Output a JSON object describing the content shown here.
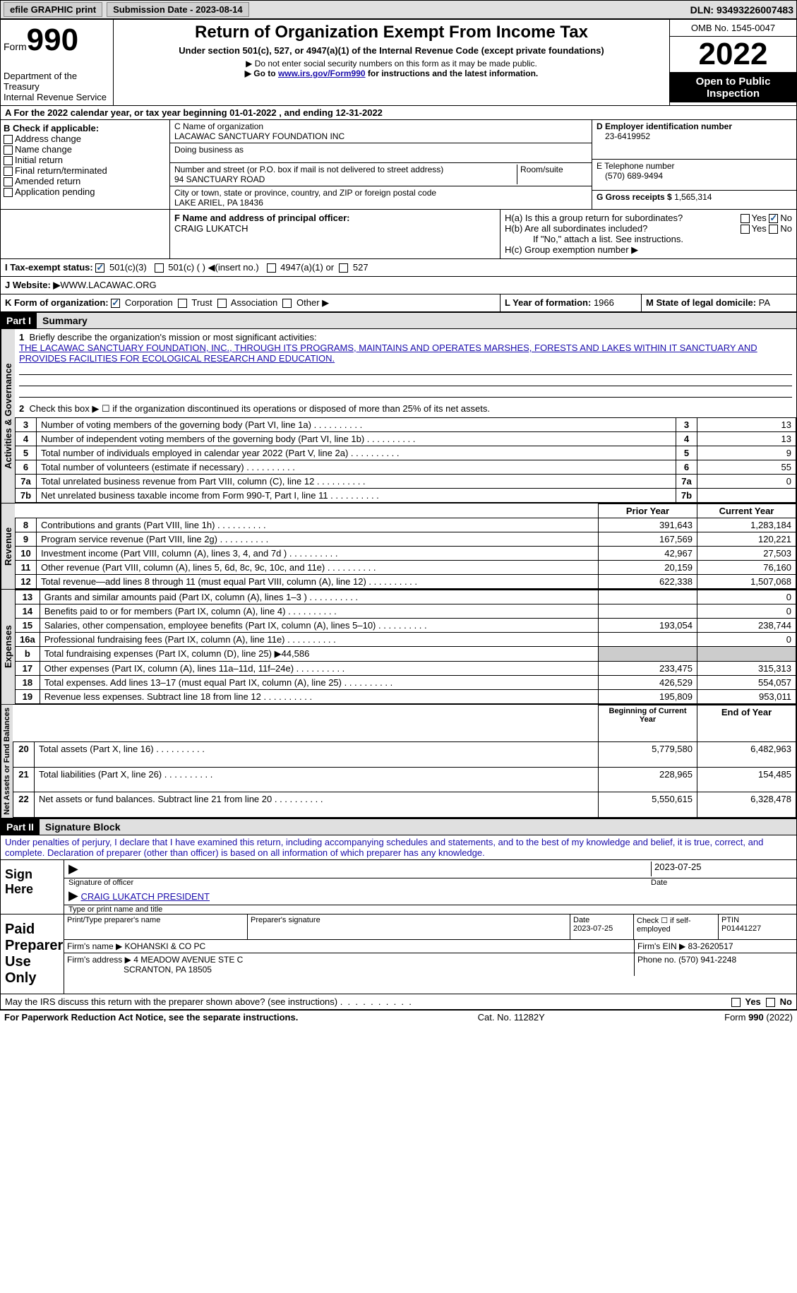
{
  "topbar": {
    "efile": "efile GRAPHIC print",
    "subdate_label": "Submission Date - ",
    "subdate": "2023-08-14",
    "dln_label": "DLN: ",
    "dln": "93493226007483"
  },
  "header": {
    "form_word": "Form",
    "form_num": "990",
    "dept": "Department of the Treasury",
    "irs": "Internal Revenue Service",
    "title": "Return of Organization Exempt From Income Tax",
    "subtitle": "Under section 501(c), 527, or 4947(a)(1) of the Internal Revenue Code (except private foundations)",
    "note1": "▶ Do not enter social security numbers on this form as it may be made public.",
    "note2_pre": "▶ Go to ",
    "note2_link": "www.irs.gov/Form990",
    "note2_post": " for instructions and the latest information.",
    "omb": "OMB No. 1545-0047",
    "year": "2022",
    "inspection": "Open to Public Inspection"
  },
  "rowA": "A For the 2022 calendar year, or tax year beginning 01-01-2022   , and ending 12-31-2022",
  "sectionB": {
    "label": "B Check if applicable:",
    "items": [
      "Address change",
      "Name change",
      "Initial return",
      "Final return/terminated",
      "Amended return",
      "Application pending"
    ]
  },
  "sectionC": {
    "name_label": "C Name of organization",
    "name": "LACAWAC SANCTUARY FOUNDATION INC",
    "dba_label": "Doing business as",
    "addr_label": "Number and street (or P.O. box if mail is not delivered to street address)",
    "room_label": "Room/suite",
    "addr": "94 SANCTUARY ROAD",
    "city_label": "City or town, state or province, country, and ZIP or foreign postal code",
    "city": "LAKE ARIEL, PA  18436"
  },
  "sectionDE": {
    "d_label": "D Employer identification number",
    "d_val": "23-6419952",
    "e_label": "E Telephone number",
    "e_val": "(570) 689-9494",
    "g_label": "G Gross receipts $ ",
    "g_val": "1,565,314"
  },
  "sectionF": {
    "label": "F  Name and address of principal officer:",
    "val": "CRAIG LUKATCH"
  },
  "sectionH": {
    "ha": "H(a)  Is this a group return for subordinates?",
    "hb": "H(b)  Are all subordinates included?",
    "hb_note": "If \"No,\" attach a list. See instructions.",
    "hc": "H(c)  Group exemption number ▶",
    "yes": "Yes",
    "no": "No"
  },
  "sectionI": {
    "label": "I    Tax-exempt status:",
    "o501c3": "501(c)(3)",
    "o501c": "501(c) (  ) ◀(insert no.)",
    "o4947": "4947(a)(1) or",
    "o527": "527"
  },
  "sectionJ": {
    "label": "J   Website: ▶ ",
    "val": "WWW.LACAWAC.ORG"
  },
  "sectionK": {
    "label": "K Form of organization:",
    "corp": "Corporation",
    "trust": "Trust",
    "assoc": "Association",
    "other": "Other ▶"
  },
  "sectionL": {
    "label": "L Year of formation: ",
    "val": "1966"
  },
  "sectionM": {
    "label": "M State of legal domicile: ",
    "val": "PA"
  },
  "part1": {
    "hdr": "Part I",
    "title": "Summary",
    "activities_label": "Activities & Governance",
    "revenue_label": "Revenue",
    "expenses_label": "Expenses",
    "net_label": "Net Assets or Fund Balances",
    "l1": "Briefly describe the organization's mission or most significant activities:",
    "mission": "THE LACAWAC SANCTUARY FOUNDATION, INC., THROUGH ITS PROGRAMS, MAINTAINS AND OPERATES MARSHES, FORESTS AND LAKES WITHIN IT SANCTUARY AND PROVIDES FACILITIES FOR ECOLOGICAL RESEARCH AND EDUCATION.",
    "l2": "Check this box ▶ ☐ if the organization discontinued its operations or disposed of more than 25% of its net assets.",
    "rows_gov": [
      {
        "n": "3",
        "t": "Number of voting members of the governing body (Part VI, line 1a)",
        "v": "13"
      },
      {
        "n": "4",
        "t": "Number of independent voting members of the governing body (Part VI, line 1b)",
        "v": "13"
      },
      {
        "n": "5",
        "t": "Total number of individuals employed in calendar year 2022 (Part V, line 2a)",
        "v": "9"
      },
      {
        "n": "6",
        "t": "Total number of volunteers (estimate if necessary)",
        "v": "55"
      },
      {
        "n": "7a",
        "t": "Total unrelated business revenue from Part VIII, column (C), line 12",
        "v": "0"
      },
      {
        "n": "7b",
        "t": "Net unrelated business taxable income from Form 990-T, Part I, line 11",
        "v": ""
      }
    ],
    "prior_hdr": "Prior Year",
    "current_hdr": "Current Year",
    "rows_rev": [
      {
        "n": "8",
        "t": "Contributions and grants (Part VIII, line 1h)",
        "p": "391,643",
        "c": "1,283,184"
      },
      {
        "n": "9",
        "t": "Program service revenue (Part VIII, line 2g)",
        "p": "167,569",
        "c": "120,221"
      },
      {
        "n": "10",
        "t": "Investment income (Part VIII, column (A), lines 3, 4, and 7d )",
        "p": "42,967",
        "c": "27,503"
      },
      {
        "n": "11",
        "t": "Other revenue (Part VIII, column (A), lines 5, 6d, 8c, 9c, 10c, and 11e)",
        "p": "20,159",
        "c": "76,160"
      },
      {
        "n": "12",
        "t": "Total revenue—add lines 8 through 11 (must equal Part VIII, column (A), line 12)",
        "p": "622,338",
        "c": "1,507,068"
      }
    ],
    "rows_exp": [
      {
        "n": "13",
        "t": "Grants and similar amounts paid (Part IX, column (A), lines 1–3 )",
        "p": "",
        "c": "0"
      },
      {
        "n": "14",
        "t": "Benefits paid to or for members (Part IX, column (A), line 4)",
        "p": "",
        "c": "0"
      },
      {
        "n": "15",
        "t": "Salaries, other compensation, employee benefits (Part IX, column (A), lines 5–10)",
        "p": "193,054",
        "c": "238,744"
      },
      {
        "n": "16a",
        "t": "Professional fundraising fees (Part IX, column (A), line 11e)",
        "p": "",
        "c": "0"
      },
      {
        "n": "b",
        "t": "Total fundraising expenses (Part IX, column (D), line 25) ▶44,586",
        "p": "GRAY",
        "c": "GRAY"
      },
      {
        "n": "17",
        "t": "Other expenses (Part IX, column (A), lines 11a–11d, 11f–24e)",
        "p": "233,475",
        "c": "315,313"
      },
      {
        "n": "18",
        "t": "Total expenses. Add lines 13–17 (must equal Part IX, column (A), line 25)",
        "p": "426,529",
        "c": "554,057"
      },
      {
        "n": "19",
        "t": "Revenue less expenses. Subtract line 18 from line 12",
        "p": "195,809",
        "c": "953,011"
      }
    ],
    "begin_hdr": "Beginning of Current Year",
    "end_hdr": "End of Year",
    "rows_net": [
      {
        "n": "20",
        "t": "Total assets (Part X, line 16)",
        "p": "5,779,580",
        "c": "6,482,963"
      },
      {
        "n": "21",
        "t": "Total liabilities (Part X, line 26)",
        "p": "228,965",
        "c": "154,485"
      },
      {
        "n": "22",
        "t": "Net assets or fund balances. Subtract line 21 from line 20",
        "p": "5,550,615",
        "c": "6,328,478"
      }
    ]
  },
  "part2": {
    "hdr": "Part II",
    "title": "Signature Block",
    "penalty": "Under penalties of perjury, I declare that I have examined this return, including accompanying schedules and statements, and to the best of my knowledge and belief, it is true, correct, and complete. Declaration of preparer (other than officer) is based on all information of which preparer has any knowledge.",
    "sign_here": "Sign Here",
    "sig_officer": "Signature of officer",
    "sig_date": "2023-07-25",
    "date_lbl": "Date",
    "officer_name": "CRAIG LUKATCH  PRESIDENT",
    "type_name": "Type or print name and title",
    "paid": "Paid Preparer Use Only",
    "prep_name_lbl": "Print/Type preparer's name",
    "prep_sig_lbl": "Preparer's signature",
    "prep_date_lbl": "Date",
    "prep_date": "2023-07-25",
    "check_self": "Check ☐ if self-employed",
    "ptin_lbl": "PTIN",
    "ptin": "P01441227",
    "firm_name_lbl": "Firm's name     ▶ ",
    "firm_name": "KOHANSKI & CO PC",
    "firm_ein_lbl": "Firm's EIN ▶ ",
    "firm_ein": "83-2620517",
    "firm_addr_lbl": "Firm's address ▶ ",
    "firm_addr1": "4 MEADOW AVENUE STE C",
    "firm_addr2": "SCRANTON, PA  18505",
    "phone_lbl": "Phone no. ",
    "phone": "(570) 941-2248"
  },
  "discuss": "May the IRS discuss this return with the preparer shown above? (see instructions)",
  "footer": {
    "left": "For Paperwork Reduction Act Notice, see the separate instructions.",
    "mid": "Cat. No. 11282Y",
    "right": "Form 990 (2022)"
  }
}
